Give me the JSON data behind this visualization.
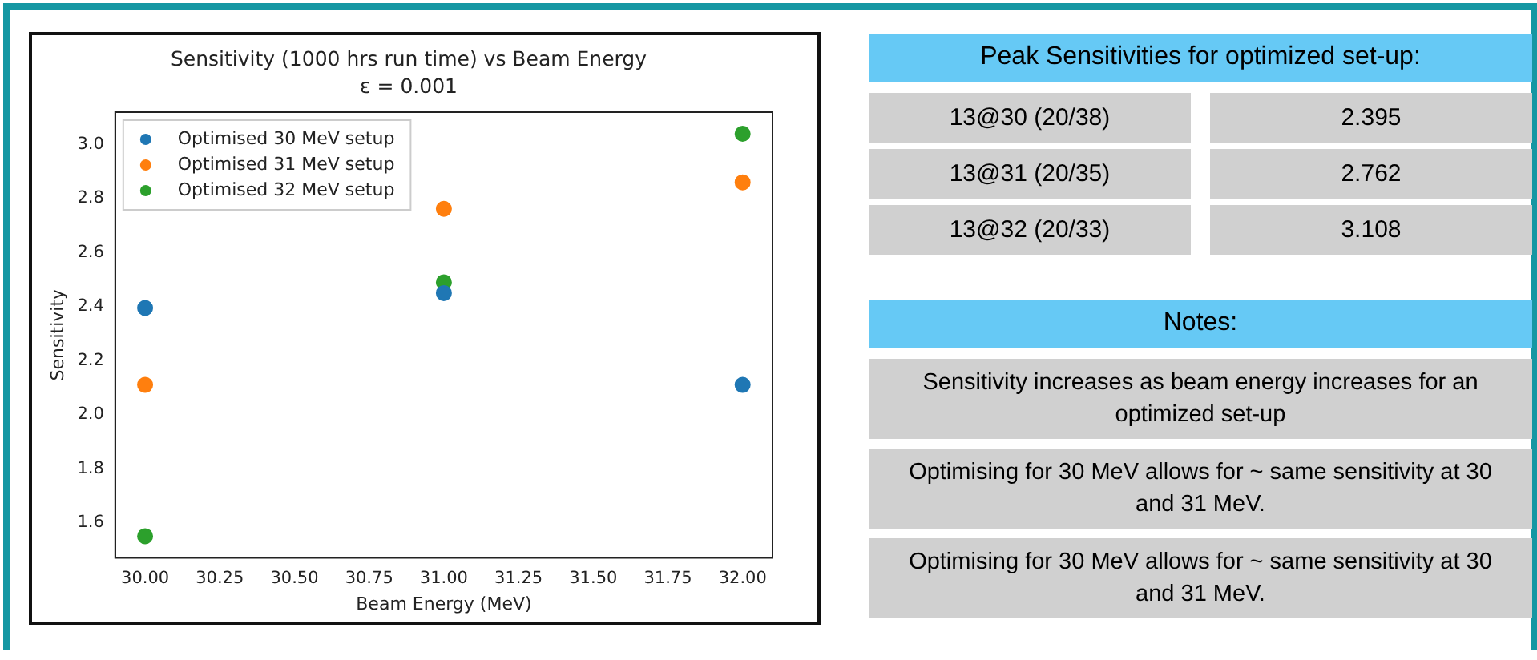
{
  "chart_data": [
    {
      "type": "scatter",
      "title": "Sensitivity (1000 hrs run time) vs Beam Energy",
      "subtitle": "ε = 0.001",
      "xlabel": "Beam Energy (MeV)",
      "ylabel": "Sensitivity",
      "x": [
        30,
        31,
        32
      ],
      "series": [
        {
          "name": "Optimised 30 MeV setup",
          "color": "#1f77b4",
          "values": [
            2.395,
            2.45,
            2.11
          ]
        },
        {
          "name": "Optimised 31 MeV setup",
          "color": "#ff7f0e",
          "values": [
            2.11,
            2.762,
            2.86
          ]
        },
        {
          "name": "Optimised 32 MeV setup",
          "color": "#2ca02c",
          "values": [
            1.55,
            2.49,
            3.04
          ]
        }
      ],
      "xlim": [
        29.9,
        32.1
      ],
      "xticks": [
        {
          "value": 30,
          "label": "30.00"
        },
        {
          "value": 30.25,
          "label": "30.25"
        },
        {
          "value": 30.5,
          "label": "30.50"
        },
        {
          "value": 30.75,
          "label": "30.75"
        },
        {
          "value": 31,
          "label": "31.00"
        },
        {
          "value": 31.25,
          "label": "31.25"
        },
        {
          "value": 31.5,
          "label": "31.50"
        },
        {
          "value": 31.75,
          "label": "31.75"
        },
        {
          "value": 32,
          "label": "32.00"
        }
      ],
      "ylim": [
        1.47,
        3.12
      ],
      "yticks": [
        1.6,
        1.8,
        {
          "value": 2,
          "label": "2.0"
        },
        2.2,
        2.4,
        2.6,
        2.8,
        {
          "value": 3,
          "label": "3.0"
        }
      ],
      "legend": "top left",
      "marker": "circle"
    },
    {
      "type": "other",
      "title": "Peak Sensitivities for optimized set-up:",
      "categories": [
        "13@30 (20/38)",
        "13@31 (20/35)",
        "13@32 (20/33)"
      ],
      "values": [
        2.395,
        2.762,
        3.108
      ],
      "data_labels": true
    },
    {
      "type": "other",
      "title": "Notes:",
      "annotations": [
        "Sensitivity increases as beam energy increases for an optimized set-up",
        "Optimising for 30 MeV allows for ~ same sensitivity at 30 and 31 MeV.",
        "Optimising for 30 MeV allows for ~ same sensitivity at 30 and 31 MeV."
      ]
    }
  ]
}
